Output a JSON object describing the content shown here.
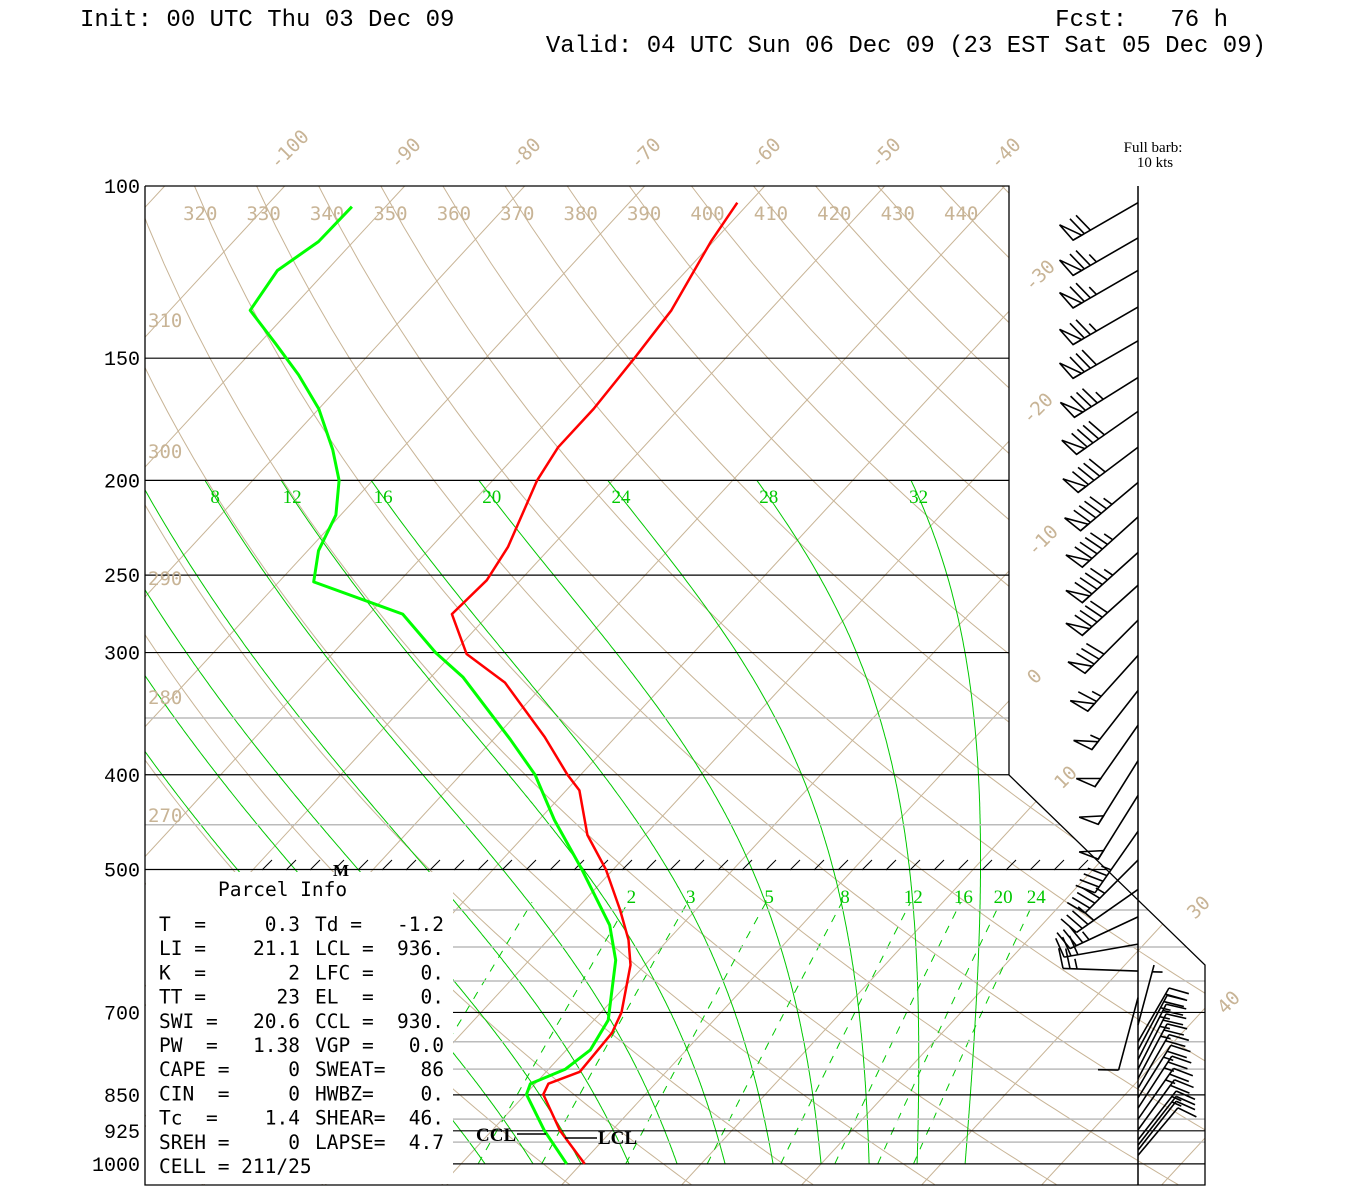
{
  "header": {
    "init": "Init: 00 UTC Thu 03 Dec 09",
    "fcst": "Fcst:   76 h",
    "valid": "Valid: 04 UTC Sun 06 Dec 09 (23 EST Sat 05 Dec 09)"
  },
  "legend": {
    "barb_line1": "Full barb:",
    "barb_line2": "10 kts"
  },
  "parcel": {
    "title": "Parcel Info",
    "rows": [
      {
        "l": "T  =",
        "lv": "0.3",
        "r": "Td =",
        "rv": "-1.2"
      },
      {
        "l": "LI =",
        "lv": "21.1",
        "r": "LCL =",
        "rv": "936."
      },
      {
        "l": "K  =",
        "lv": "2",
        "r": "LFC =",
        "rv": "0."
      },
      {
        "l": "TT =",
        "lv": "23",
        "r": "EL  =",
        "rv": "0."
      },
      {
        "l": "SWI =",
        "lv": "20.6",
        "r": "CCL =",
        "rv": "930."
      },
      {
        "l": "PW  =",
        "lv": "1.38",
        "r": "VGP =",
        "rv": "0.0"
      },
      {
        "l": "CAPE =",
        "lv": "0",
        "r": "SWEAT=",
        "rv": "86"
      },
      {
        "l": "CIN  =",
        "lv": "0",
        "r": "HWBZ=",
        "rv": "0."
      },
      {
        "l": "Tc  =",
        "lv": "1.4",
        "r": "SHEAR=",
        "rv": "46."
      },
      {
        "l": "SREH =",
        "lv": "0",
        "r": "LAPSE=",
        "rv": "4.7"
      }
    ],
    "cell": "CELL = 211/25"
  },
  "chart_data": {
    "type": "skew-t",
    "title": "Init: 00 UTC Thu 03 Dec 09 / Valid: 04 UTC Sun 06 Dec 09",
    "pressure_axis": {
      "unit": "hPa",
      "range": [
        1000,
        100
      ],
      "scale": "log",
      "tick_labels": [
        "100",
        "150",
        "200",
        "250",
        "300",
        "400",
        "500",
        "700",
        "850",
        "925",
        "1000"
      ]
    },
    "temperature_axis": {
      "unit": "C",
      "skewed": true
    },
    "secondary_isobars": [
      350,
      450,
      550,
      600,
      650,
      750,
      800,
      900,
      950
    ],
    "isotherm_labels_top": [
      "-100",
      "-90",
      "-80",
      "-70",
      "-60",
      "-50",
      "-40"
    ],
    "isotherm_labels_right": [
      "-30",
      "-20",
      "-10",
      "0",
      "10",
      "30",
      "40"
    ],
    "dry_adiabat_labels_top": [
      "320",
      "330",
      "340",
      "350",
      "360",
      "370",
      "380",
      "390",
      "400",
      "410",
      "420",
      "430",
      "440"
    ],
    "dry_adiabat_labels_left": [
      "310",
      "300",
      "290",
      "280",
      "270"
    ],
    "moist_adiabat_labels": [
      "8",
      "12",
      "16",
      "20",
      "24",
      "28",
      "32"
    ],
    "moist_adiabat_values": [
      -8,
      -4,
      0,
      4,
      8,
      12,
      16,
      20,
      24,
      28,
      32
    ],
    "mixing_ratio_labels": [
      "2",
      "3",
      "5",
      "8",
      "12",
      "16",
      "20",
      "24"
    ],
    "mixing_ratio_values": [
      0.4,
      1,
      2,
      3,
      5,
      8,
      12,
      16,
      20,
      24
    ],
    "temperature": [
      {
        "p": 1000,
        "t": 0.3
      },
      {
        "p": 925,
        "t": -4.3
      },
      {
        "p": 849,
        "t": -8.5
      },
      {
        "p": 828,
        "t": -8.9
      },
      {
        "p": 805,
        "t": -7.2
      },
      {
        "p": 735,
        "t": -7.5
      },
      {
        "p": 700,
        "t": -8.3
      },
      {
        "p": 626,
        "t": -11.2
      },
      {
        "p": 590,
        "t": -13.3
      },
      {
        "p": 550,
        "t": -16.3
      },
      {
        "p": 500,
        "t": -20.6
      },
      {
        "p": 461,
        "t": -24.8
      },
      {
        "p": 415,
        "t": -28.9
      },
      {
        "p": 400,
        "t": -31.1
      },
      {
        "p": 366,
        "t": -35.9
      },
      {
        "p": 322,
        "t": -43.4
      },
      {
        "p": 301,
        "t": -48.8
      },
      {
        "p": 274,
        "t": -53.1
      },
      {
        "p": 253,
        "t": -52.8
      },
      {
        "p": 234,
        "t": -53.6
      },
      {
        "p": 200,
        "t": -56.3
      },
      {
        "p": 185,
        "t": -57.1
      },
      {
        "p": 169,
        "t": -57.1
      },
      {
        "p": 150,
        "t": -57.6
      },
      {
        "p": 134,
        "t": -58.2
      },
      {
        "p": 114,
        "t": -60.2
      },
      {
        "p": 104,
        "t": -61.0
      }
    ],
    "dewpoint": [
      {
        "p": 1000,
        "t": -1.2
      },
      {
        "p": 925,
        "t": -5.6
      },
      {
        "p": 849,
        "t": -9.9
      },
      {
        "p": 828,
        "t": -10.4
      },
      {
        "p": 800,
        "t": -8.6
      },
      {
        "p": 765,
        "t": -8.0
      },
      {
        "p": 713,
        "t": -8.8
      },
      {
        "p": 619,
        "t": -12.8
      },
      {
        "p": 570,
        "t": -16.0
      },
      {
        "p": 500,
        "t": -22.6
      },
      {
        "p": 445,
        "t": -28.7
      },
      {
        "p": 400,
        "t": -33.8
      },
      {
        "p": 368,
        "t": -38.6
      },
      {
        "p": 318,
        "t": -47.3
      },
      {
        "p": 300,
        "t": -51.5
      },
      {
        "p": 274,
        "t": -57.2
      },
      {
        "p": 254,
        "t": -67.1
      },
      {
        "p": 236,
        "t": -69.1
      },
      {
        "p": 217,
        "t": -70.4
      },
      {
        "p": 200,
        "t": -72.8
      },
      {
        "p": 186,
        "t": -75.7
      },
      {
        "p": 169,
        "t": -80.0
      },
      {
        "p": 156,
        "t": -84.3
      },
      {
        "p": 145,
        "t": -88.6
      },
      {
        "p": 134,
        "t": -93.3
      },
      {
        "p": 122,
        "t": -94.1
      },
      {
        "p": 114,
        "t": -92.9
      },
      {
        "p": 105,
        "t": -92.8
      }
    ],
    "winds_kts": [
      {
        "p": 104,
        "dir": 240,
        "spd": 70
      },
      {
        "p": 113,
        "dir": 240,
        "spd": 75
      },
      {
        "p": 122,
        "dir": 240,
        "spd": 75
      },
      {
        "p": 133,
        "dir": 240,
        "spd": 75
      },
      {
        "p": 144,
        "dir": 240,
        "spd": 80
      },
      {
        "p": 157,
        "dir": 238,
        "spd": 85
      },
      {
        "p": 170,
        "dir": 235,
        "spd": 90
      },
      {
        "p": 185,
        "dir": 233,
        "spd": 90
      },
      {
        "p": 201,
        "dir": 230,
        "spd": 95
      },
      {
        "p": 218,
        "dir": 228,
        "spd": 95
      },
      {
        "p": 237,
        "dir": 228,
        "spd": 95
      },
      {
        "p": 256,
        "dir": 228,
        "spd": 90
      },
      {
        "p": 278,
        "dir": 225,
        "spd": 80
      },
      {
        "p": 302,
        "dir": 222,
        "spd": 65
      },
      {
        "p": 328,
        "dir": 218,
        "spd": 55
      },
      {
        "p": 356,
        "dir": 215,
        "spd": 50
      },
      {
        "p": 387,
        "dir": 212,
        "spd": 50
      },
      {
        "p": 420,
        "dir": 212,
        "spd": 50
      },
      {
        "p": 457,
        "dir": 215,
        "spd": 45
      },
      {
        "p": 489,
        "dir": 225,
        "spd": 45
      },
      {
        "p": 524,
        "dir": 235,
        "spd": 40
      },
      {
        "p": 559,
        "dir": 245,
        "spd": 35
      },
      {
        "p": 596,
        "dir": 260,
        "spd": 30
      },
      {
        "p": 635,
        "dir": 272,
        "spd": 25
      },
      {
        "p": 676,
        "dir": 195,
        "spd": 10
      },
      {
        "p": 721,
        "dir": 15,
        "spd": 5
      },
      {
        "p": 750,
        "dir": 30,
        "spd": 20
      },
      {
        "p": 765,
        "dir": 28,
        "spd": 25
      },
      {
        "p": 782,
        "dir": 27,
        "spd": 25
      },
      {
        "p": 800,
        "dir": 27,
        "spd": 25
      },
      {
        "p": 818,
        "dir": 28,
        "spd": 25
      },
      {
        "p": 837,
        "dir": 30,
        "spd": 20
      },
      {
        "p": 856,
        "dir": 32,
        "spd": 25
      },
      {
        "p": 877,
        "dir": 33,
        "spd": 25
      },
      {
        "p": 900,
        "dir": 35,
        "spd": 25
      },
      {
        "p": 923,
        "dir": 36,
        "spd": 20
      },
      {
        "p": 945,
        "dir": 38,
        "spd": 15
      },
      {
        "p": 957,
        "dir": 38,
        "spd": 15
      },
      {
        "p": 968,
        "dir": 38,
        "spd": 10
      },
      {
        "p": 980,
        "dir": 40,
        "spd": 10
      }
    ],
    "markers": {
      "m_label": "M",
      "ccl_label": "CCL",
      "lcl_label": "LCL",
      "ccl_p": 930,
      "lcl_p": 936
    },
    "colors": {
      "temperature": "#ff0000",
      "dewpoint": "#00ff00",
      "background": "#c8b496",
      "moist": "#00c800"
    }
  }
}
